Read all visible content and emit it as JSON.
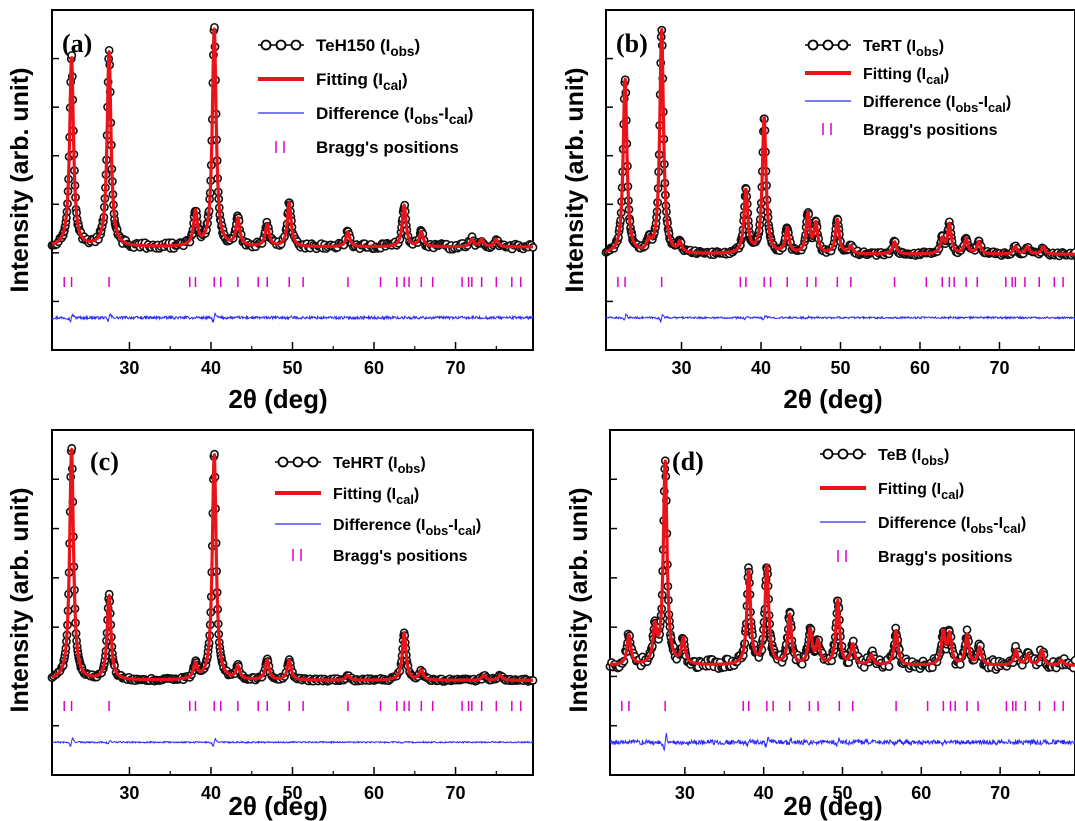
{
  "figure": {
    "x_unit_label": "2θ (deg)",
    "y_label": "Intensity (arb. unit)"
  },
  "colors": {
    "observed": "#111111",
    "fit": "#e8141a",
    "difference": "#2b2bff",
    "bragg": "#e000c8"
  },
  "chart_data": [
    {
      "type": "line",
      "panel": "(a)",
      "xlabel": "2θ (deg)",
      "ylabel": "Intensity (arb. unit)",
      "xlim": [
        20.5,
        79.5
      ],
      "xticks": [
        30,
        40,
        50,
        60,
        70
      ],
      "yticks": "unlabeled",
      "legend": {
        "placement": "top-right",
        "entries": [
          {
            "series": "observed",
            "text": "TeH150 (I",
            "sub": "obs",
            "tail": ")"
          },
          {
            "series": "fit",
            "text": "Fitting (I",
            "sub": "cal",
            "tail": ")"
          },
          {
            "series": "difference",
            "text": "Difference (I",
            "sub": "obs",
            "mid": "-I",
            "sub2": "cal",
            "tail": ")"
          },
          {
            "series": "bragg",
            "text": "Bragg's positions"
          }
        ]
      },
      "series": [
        {
          "name": "TeH150 (Iobs)",
          "role": "observed"
        },
        {
          "name": "Fitting (Ical)",
          "role": "fit"
        },
        {
          "name": "Difference (Iobs-Ical)",
          "role": "difference"
        },
        {
          "name": "Bragg's positions",
          "role": "bragg"
        }
      ],
      "baseline": 0.06,
      "peaks": [
        [
          22.9,
          0.78
        ],
        [
          27.5,
          0.8
        ],
        [
          38.1,
          0.14
        ],
        [
          40.4,
          0.9
        ],
        [
          43.3,
          0.11
        ],
        [
          46.9,
          0.09
        ],
        [
          49.6,
          0.18
        ],
        [
          56.8,
          0.06
        ],
        [
          63.7,
          0.17
        ],
        [
          65.8,
          0.06
        ],
        [
          72.0,
          0.03
        ],
        [
          73.2,
          0.03
        ],
        [
          75.0,
          0.03
        ]
      ],
      "bragg_positions": [
        22.0,
        22.9,
        27.5,
        37.4,
        38.1,
        40.4,
        41.2,
        43.3,
        45.8,
        46.9,
        49.6,
        51.3,
        56.8,
        60.8,
        62.8,
        63.7,
        64.3,
        65.8,
        67.2,
        70.8,
        71.6,
        72.0,
        73.2,
        75.0,
        76.9,
        78.0
      ],
      "noise": 0.012
    },
    {
      "type": "line",
      "panel": "(b)",
      "xlabel": "2θ (deg)",
      "ylabel": "Intensity (arb. unit)",
      "xlim": [
        20.5,
        79.5
      ],
      "xticks": [
        30,
        40,
        50,
        60,
        70
      ],
      "yticks": "unlabeled",
      "legend": {
        "placement": "top-right",
        "entries": [
          {
            "series": "observed",
            "text": "TeRT (I",
            "sub": "obs",
            "tail": ")"
          },
          {
            "series": "fit",
            "text": "Fitting (I",
            "sub": "cal",
            "tail": ")"
          },
          {
            "series": "difference",
            "text": "Difference (I",
            "sub": "obs",
            "mid": "-I",
            "sub2": "cal",
            "tail": ")"
          },
          {
            "series": "bragg",
            "text": "Bragg's positions"
          }
        ]
      },
      "series": [
        {
          "name": "TeRT (Iobs)",
          "role": "observed"
        },
        {
          "name": "Fitting (Ical)",
          "role": "fit"
        },
        {
          "name": "Difference (Iobs-Ical)",
          "role": "difference"
        },
        {
          "name": "Bragg's positions",
          "role": "bragg"
        }
      ],
      "baseline": 0.03,
      "peaks": [
        [
          22.9,
          0.72
        ],
        [
          25.9,
          0.04
        ],
        [
          27.5,
          0.92
        ],
        [
          29.8,
          0.04
        ],
        [
          38.1,
          0.26
        ],
        [
          40.4,
          0.56
        ],
        [
          43.3,
          0.1
        ],
        [
          45.9,
          0.16
        ],
        [
          46.9,
          0.12
        ],
        [
          49.6,
          0.14
        ],
        [
          51.3,
          0.03
        ],
        [
          56.8,
          0.05
        ],
        [
          62.8,
          0.06
        ],
        [
          63.7,
          0.12
        ],
        [
          65.8,
          0.06
        ],
        [
          67.4,
          0.05
        ],
        [
          72.0,
          0.03
        ],
        [
          73.5,
          0.03
        ],
        [
          75.5,
          0.03
        ]
      ],
      "bragg_positions": [
        22.0,
        22.9,
        27.5,
        37.4,
        38.1,
        40.4,
        41.2,
        43.3,
        45.8,
        46.9,
        49.6,
        51.3,
        56.8,
        60.8,
        62.8,
        63.7,
        64.3,
        65.8,
        67.2,
        70.8,
        71.6,
        72.0,
        73.2,
        75.0,
        76.9,
        78.0
      ],
      "noise": 0.008
    },
    {
      "type": "line",
      "panel": "(c)",
      "xlabel": "2θ (deg)",
      "ylabel": "Intensity (arb. unit)",
      "xlim": [
        20.5,
        79.5
      ],
      "xticks": [
        30,
        40,
        50,
        60,
        70
      ],
      "yticks": "unlabeled",
      "legend": {
        "placement": "top-right",
        "entries": [
          {
            "series": "observed",
            "text": "TeHRT (I",
            "sub": "obs",
            "tail": ")"
          },
          {
            "series": "fit",
            "text": "Fitting (I",
            "sub": "cal",
            "tail": ")"
          },
          {
            "series": "difference",
            "text": "Difference (I",
            "sub": "obs",
            "mid": "-I",
            "sub2": "cal",
            "tail": ")"
          },
          {
            "series": "bragg",
            "text": "Bragg's positions"
          }
        ]
      },
      "series": [
        {
          "name": "TeHRT (Iobs)",
          "role": "observed"
        },
        {
          "name": "Fitting (Ical)",
          "role": "fit"
        },
        {
          "name": "Difference (Iobs-Ical)",
          "role": "difference"
        },
        {
          "name": "Bragg's positions",
          "role": "bragg"
        }
      ],
      "baseline": 0.02,
      "peaks": [
        [
          22.9,
          0.94
        ],
        [
          27.5,
          0.34
        ],
        [
          38.1,
          0.06
        ],
        [
          40.4,
          0.92
        ],
        [
          43.3,
          0.05
        ],
        [
          46.9,
          0.08
        ],
        [
          49.6,
          0.08
        ],
        [
          56.8,
          0.02
        ],
        [
          63.7,
          0.19
        ],
        [
          65.8,
          0.04
        ],
        [
          73.5,
          0.02
        ],
        [
          75.5,
          0.02
        ]
      ],
      "bragg_positions": [
        22.0,
        22.9,
        27.5,
        37.4,
        38.1,
        40.4,
        41.2,
        43.3,
        45.8,
        46.9,
        49.6,
        51.3,
        56.8,
        60.8,
        62.8,
        63.7,
        64.3,
        65.8,
        67.2,
        70.8,
        71.6,
        72.0,
        73.2,
        75.0,
        76.9,
        78.0
      ],
      "noise": 0.006
    },
    {
      "type": "line",
      "panel": "(d)",
      "xlabel": "2θ (deg)",
      "ylabel": "Intensity (arb. unit)",
      "xlim": [
        20.5,
        79.5
      ],
      "xticks": [
        30,
        40,
        50,
        60,
        70
      ],
      "yticks": "unlabeled",
      "legend": {
        "placement": "top-right",
        "entries": [
          {
            "series": "observed",
            "text": "TeB (I",
            "sub": "obs",
            "tail": ")"
          },
          {
            "series": "fit",
            "text": "Fitting (I",
            "sub": "cal",
            "tail": ")"
          },
          {
            "series": "difference",
            "text": "Difference (I",
            "sub": "obs",
            "mid": "-I",
            "sub2": "cal",
            "tail": ")"
          },
          {
            "series": "bragg",
            "text": "Bragg's positions"
          }
        ]
      },
      "series": [
        {
          "name": "TeB (Iobs)",
          "role": "observed"
        },
        {
          "name": "Fitting (Ical)",
          "role": "fit"
        },
        {
          "name": "Difference (Iobs-Ical)",
          "role": "difference"
        },
        {
          "name": "Bragg's positions",
          "role": "bragg"
        }
      ],
      "baseline": 0.08,
      "peaks": [
        [
          22.9,
          0.12
        ],
        [
          26.2,
          0.14
        ],
        [
          27.5,
          0.82
        ],
        [
          29.8,
          0.1
        ],
        [
          38.1,
          0.38
        ],
        [
          40.4,
          0.4
        ],
        [
          43.3,
          0.2
        ],
        [
          45.9,
          0.14
        ],
        [
          46.9,
          0.09
        ],
        [
          49.4,
          0.26
        ],
        [
          51.3,
          0.08
        ],
        [
          53.7,
          0.04
        ],
        [
          56.8,
          0.14
        ],
        [
          62.8,
          0.13
        ],
        [
          63.6,
          0.12
        ],
        [
          65.8,
          0.12
        ],
        [
          67.4,
          0.07
        ],
        [
          72.0,
          0.06
        ],
        [
          73.5,
          0.04
        ],
        [
          75.3,
          0.06
        ],
        [
          77.8,
          0.02
        ]
      ],
      "bragg_positions": [
        22.0,
        22.9,
        27.5,
        37.4,
        38.1,
        40.4,
        41.2,
        43.3,
        45.8,
        46.9,
        49.6,
        51.3,
        56.8,
        60.8,
        62.8,
        63.7,
        64.3,
        65.8,
        67.2,
        70.8,
        71.6,
        72.0,
        73.2,
        75.0,
        76.9,
        78.0
      ],
      "noise": 0.02
    }
  ]
}
